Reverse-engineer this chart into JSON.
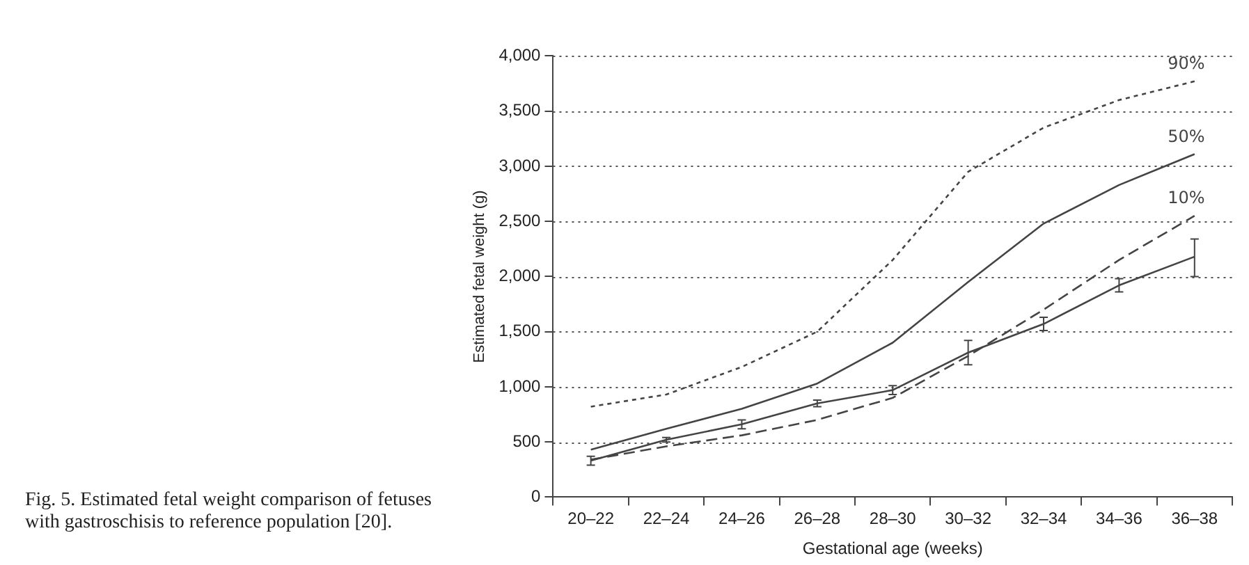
{
  "chart_data": {
    "type": "line",
    "xlabel": "Gestational age (weeks)",
    "ylabel": "Estimated fetal weight (g)",
    "categories": [
      "20–22",
      "22–24",
      "24–26",
      "26–28",
      "28–30",
      "30–32",
      "32–34",
      "34–36",
      "36–38"
    ],
    "series": [
      {
        "name": "90%",
        "color": "#444444",
        "line_style": "dotted",
        "values": [
          820,
          930,
          1180,
          1500,
          2150,
          2950,
          3350,
          3600,
          3770
        ]
      },
      {
        "name": "50%",
        "color": "#444444",
        "line_style": "solid",
        "values": [
          430,
          620,
          800,
          1030,
          1400,
          1950,
          2480,
          2830,
          3110
        ]
      },
      {
        "name": "10%",
        "color": "#444444",
        "line_style": "dashed",
        "values": [
          340,
          460,
          560,
          700,
          900,
          1280,
          1700,
          2150,
          2550
        ]
      },
      {
        "color": "#444444",
        "line_style": "solid",
        "values": [
          330,
          520,
          660,
          850,
          970,
          1310,
          1570,
          1920,
          2180
        ],
        "errors": [
          40,
          20,
          40,
          30,
          40,
          110,
          60,
          60,
          [
            2000,
            2340
          ]
        ]
      }
    ],
    "ylim": [
      0,
      4000
    ],
    "yticks": [
      {
        "value": 0,
        "label": "0"
      },
      {
        "value": 500,
        "label": "500"
      },
      {
        "value": 1000,
        "label": "1,000"
      },
      {
        "value": 1500,
        "label": "1,500"
      },
      {
        "value": 2000,
        "label": "2,000"
      },
      {
        "value": 2500,
        "label": "2,500"
      },
      {
        "value": 3000,
        "label": "3,000"
      },
      {
        "value": 3500,
        "label": "3,500"
      },
      {
        "value": 4000,
        "label": "4,000"
      }
    ],
    "grid": "y",
    "legend": false,
    "annotations": [
      "Fig. 5. Estimated fetal weight comparison of fetuses with gastroschisis to reference population [20]."
    ]
  }
}
